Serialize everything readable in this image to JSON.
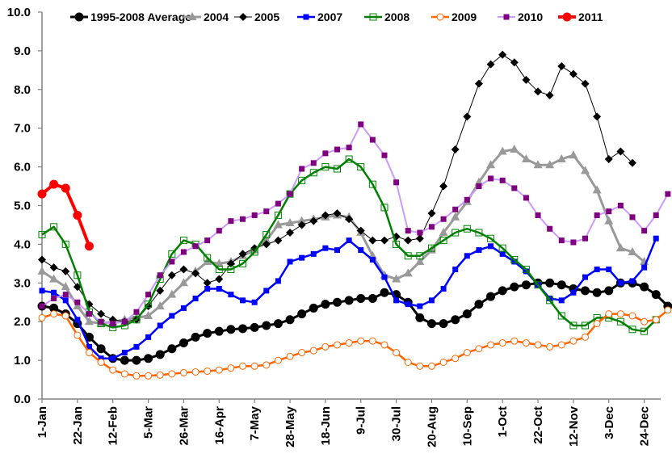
{
  "chart_data": {
    "type": "line",
    "title": "",
    "xlabel": "",
    "ylabel": "",
    "ylim": [
      0,
      10
    ],
    "yticks": [
      "0.0",
      "1.0",
      "2.0",
      "3.0",
      "4.0",
      "5.0",
      "6.0",
      "7.0",
      "8.0",
      "9.0",
      "10.0"
    ],
    "grid": false,
    "legend_position": "top",
    "x_tick_labels": [
      "1-Jan",
      "22-Jan",
      "12-Feb",
      "5-Mar",
      "26-Mar",
      "16-Apr",
      "7-May",
      "28-May",
      "18-Jun",
      "9-Jul",
      "30-Jul",
      "20-Aug",
      "10-Sep",
      "1-Oct",
      "22-Oct",
      "12-Nov",
      "3-Dec",
      "24-Dec"
    ],
    "x_unit": "week index (weekly points starting 1-Jan; labels every 3 weeks)",
    "series": [
      {
        "name": "1995-2008 Average",
        "color": "#000000",
        "marker": "circle-filled",
        "values": [
          2.4,
          2.35,
          2.2,
          1.95,
          1.6,
          1.3,
          1.05,
          1.0,
          1.0,
          1.05,
          1.15,
          1.3,
          1.45,
          1.6,
          1.7,
          1.75,
          1.8,
          1.82,
          1.85,
          1.9,
          1.95,
          2.05,
          2.2,
          2.35,
          2.45,
          2.5,
          2.55,
          2.6,
          2.6,
          2.75,
          2.7,
          2.5,
          2.1,
          1.95,
          1.95,
          2.05,
          2.2,
          2.45,
          2.65,
          2.8,
          2.9,
          2.95,
          3.0,
          3.0,
          2.95,
          2.85,
          2.8,
          2.75,
          2.8,
          3.0,
          3.0,
          2.9,
          2.7,
          2.4,
          2.4
        ]
      },
      {
        "name": "2004",
        "color": "#999999",
        "marker": "triangle",
        "values": [
          3.3,
          3.1,
          2.9,
          2.4,
          2.0,
          1.95,
          2.0,
          2.05,
          2.1,
          2.15,
          2.4,
          2.7,
          3.0,
          3.3,
          3.55,
          3.5,
          3.55,
          3.7,
          3.85,
          4.1,
          4.5,
          4.55,
          4.6,
          4.65,
          4.7,
          4.75,
          4.7,
          4.3,
          3.7,
          3.2,
          3.1,
          3.25,
          3.55,
          3.85,
          4.3,
          4.7,
          5.1,
          5.6,
          6.05,
          6.4,
          6.45,
          6.2,
          6.05,
          6.05,
          6.2,
          6.3,
          5.9,
          5.4,
          4.6,
          3.9,
          3.8,
          3.55
        ]
      },
      {
        "name": "2005",
        "color": "#000000",
        "marker": "diamond-filled",
        "values": [
          3.6,
          3.4,
          3.3,
          2.9,
          2.45,
          2.2,
          2.05,
          2.0,
          2.05,
          2.4,
          2.8,
          3.2,
          3.35,
          3.25,
          3.0,
          3.1,
          3.5,
          3.75,
          3.9,
          4.0,
          4.1,
          4.3,
          4.5,
          4.6,
          4.75,
          4.8,
          4.65,
          4.35,
          4.1,
          4.1,
          4.2,
          4.1,
          4.15,
          4.8,
          5.5,
          6.45,
          7.3,
          8.15,
          8.65,
          8.9,
          8.7,
          8.25,
          7.95,
          7.85,
          8.6,
          8.4,
          8.15,
          7.3,
          6.2,
          6.4,
          6.1
        ]
      },
      {
        "name": "2007",
        "color": "#0000ff",
        "marker": "square-filled",
        "values": [
          2.8,
          2.75,
          2.55,
          2.05,
          1.35,
          1.05,
          1.05,
          1.2,
          1.35,
          1.6,
          1.9,
          2.15,
          2.35,
          2.6,
          2.85,
          2.85,
          2.7,
          2.55,
          2.5,
          2.8,
          3.05,
          3.55,
          3.65,
          3.75,
          3.9,
          3.85,
          4.1,
          3.85,
          3.6,
          3.15,
          2.55,
          2.45,
          2.4,
          2.55,
          2.85,
          3.35,
          3.7,
          3.85,
          3.95,
          3.75,
          3.55,
          3.3,
          2.95,
          2.6,
          2.55,
          2.75,
          3.15,
          3.35,
          3.35,
          3.0,
          3.05,
          3.4,
          4.15
        ]
      },
      {
        "name": "2008",
        "color": "#008000",
        "marker": "square-open",
        "values": [
          4.25,
          4.45,
          4.0,
          3.2,
          2.25,
          1.95,
          1.85,
          1.9,
          2.05,
          2.45,
          3.1,
          3.75,
          4.1,
          4.0,
          3.65,
          3.35,
          3.35,
          3.5,
          3.8,
          4.25,
          4.75,
          5.3,
          5.65,
          5.85,
          6.0,
          5.95,
          6.2,
          6.0,
          5.55,
          4.95,
          4.0,
          3.7,
          3.7,
          3.9,
          4.1,
          4.3,
          4.4,
          4.3,
          4.15,
          3.9,
          3.6,
          3.35,
          2.95,
          2.55,
          2.15,
          1.9,
          1.9,
          2.1,
          2.1,
          2.0,
          1.8,
          1.75,
          2.05
        ]
      },
      {
        "name": "2009",
        "color": "#ff6600",
        "marker": "circle-open",
        "values": [
          2.1,
          2.2,
          2.15,
          1.65,
          1.2,
          0.95,
          0.75,
          0.65,
          0.6,
          0.6,
          0.62,
          0.65,
          0.68,
          0.7,
          0.72,
          0.75,
          0.8,
          0.85,
          0.85,
          0.88,
          1.0,
          1.1,
          1.2,
          1.25,
          1.35,
          1.4,
          1.45,
          1.5,
          1.5,
          1.4,
          1.2,
          0.95,
          0.85,
          0.85,
          0.95,
          1.05,
          1.2,
          1.3,
          1.4,
          1.45,
          1.5,
          1.45,
          1.4,
          1.35,
          1.4,
          1.5,
          1.6,
          1.95,
          2.2,
          2.2,
          2.15,
          2.0,
          2.05,
          2.3
        ]
      },
      {
        "name": "2010",
        "color": "#7f007f",
        "line_color": "#cc99ff",
        "marker": "square-filled",
        "values": [
          2.4,
          2.6,
          2.7,
          2.5,
          2.2,
          2.0,
          1.95,
          2.0,
          2.25,
          2.7,
          3.2,
          3.55,
          3.8,
          3.95,
          4.1,
          4.35,
          4.6,
          4.65,
          4.75,
          4.85,
          5.05,
          5.3,
          5.95,
          6.1,
          6.35,
          6.45,
          6.5,
          7.1,
          6.7,
          6.3,
          5.6,
          4.35,
          4.3,
          4.45,
          4.65,
          4.9,
          5.15,
          5.5,
          5.7,
          5.65,
          5.45,
          5.2,
          4.75,
          4.4,
          4.1,
          4.05,
          4.15,
          4.75,
          4.85,
          5.0,
          4.7,
          4.35,
          4.75,
          5.3
        ]
      },
      {
        "name": "2011",
        "color": "#ff0000",
        "marker": "circle-filled",
        "values": [
          5.3,
          5.55,
          5.45,
          4.75,
          3.95
        ]
      }
    ]
  }
}
